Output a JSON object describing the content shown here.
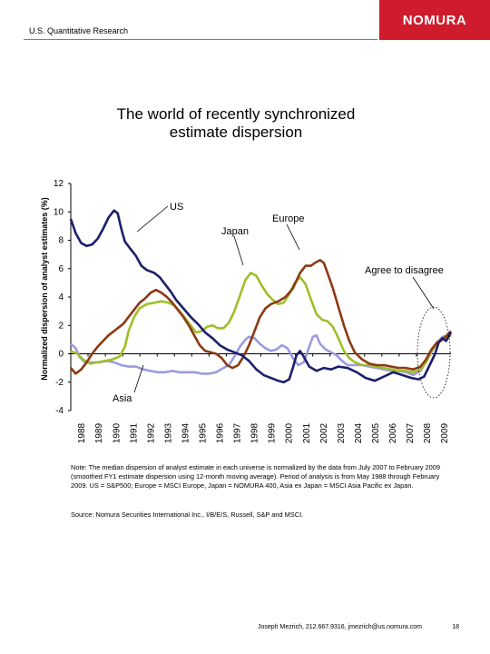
{
  "header": {
    "label": "U.S. Quantitative Research",
    "logo_text": "NOMURA"
  },
  "page_title": "The world of recently synchronized\nestimate dispersion",
  "chart_data": {
    "type": "line",
    "ylabel": "Normalized dispersion of analyst estimates (%)",
    "ylim": [
      -4,
      12
    ],
    "yticks": [
      "-4",
      "-2",
      "0",
      "2",
      "4",
      "6",
      "8",
      "10",
      "12"
    ],
    "x_tick_labels": [
      "1988",
      "1989",
      "1990",
      "1991",
      "1992",
      "1993",
      "1994",
      "1995",
      "1996",
      "1997",
      "1998",
      "1999",
      "2000",
      "2001",
      "2002",
      "2003",
      "2004",
      "2005",
      "2006",
      "2007",
      "2008",
      "2009"
    ],
    "xlim": [
      1988.33,
      2009.17
    ],
    "series": [
      {
        "name": "US",
        "color": "#1c1f6b",
        "points": [
          [
            1988.33,
            9.5
          ],
          [
            1988.6,
            8.5
          ],
          [
            1988.9,
            7.8
          ],
          [
            1989.2,
            7.6
          ],
          [
            1989.5,
            7.7
          ],
          [
            1989.8,
            8.1
          ],
          [
            1990.1,
            8.8
          ],
          [
            1990.4,
            9.6
          ],
          [
            1990.7,
            10.1
          ],
          [
            1990.9,
            9.9
          ],
          [
            1991.1,
            8.8
          ],
          [
            1991.3,
            7.9
          ],
          [
            1991.6,
            7.4
          ],
          [
            1991.9,
            6.9
          ],
          [
            1992.2,
            6.2
          ],
          [
            1992.5,
            5.9
          ],
          [
            1992.9,
            5.7
          ],
          [
            1993.2,
            5.4
          ],
          [
            1993.5,
            4.9
          ],
          [
            1993.8,
            4.4
          ],
          [
            1994.1,
            3.8
          ],
          [
            1994.5,
            3.2
          ],
          [
            1994.9,
            2.6
          ],
          [
            1995.3,
            2.1
          ],
          [
            1995.7,
            1.5
          ],
          [
            1996.1,
            1.1
          ],
          [
            1996.5,
            0.6
          ],
          [
            1996.9,
            0.3
          ],
          [
            1997.3,
            0.1
          ],
          [
            1997.7,
            -0.1
          ],
          [
            1998.1,
            -0.5
          ],
          [
            1998.5,
            -1.1
          ],
          [
            1998.9,
            -1.5
          ],
          [
            1999.3,
            -1.7
          ],
          [
            1999.7,
            -1.9
          ],
          [
            2000.0,
            -2.0
          ],
          [
            2000.3,
            -1.8
          ],
          [
            2000.5,
            -1.0
          ],
          [
            2000.7,
            -0.1
          ],
          [
            2000.9,
            0.2
          ],
          [
            2001.1,
            -0.2
          ],
          [
            2001.4,
            -0.9
          ],
          [
            2001.8,
            -1.2
          ],
          [
            2002.2,
            -1.0
          ],
          [
            2002.6,
            -1.1
          ],
          [
            2003.0,
            -0.9
          ],
          [
            2003.5,
            -1.0
          ],
          [
            2004.0,
            -1.3
          ],
          [
            2004.5,
            -1.7
          ],
          [
            2005.0,
            -1.9
          ],
          [
            2005.5,
            -1.6
          ],
          [
            2006.0,
            -1.3
          ],
          [
            2006.5,
            -1.5
          ],
          [
            2007.0,
            -1.7
          ],
          [
            2007.4,
            -1.8
          ],
          [
            2007.7,
            -1.6
          ],
          [
            2008.0,
            -0.8
          ],
          [
            2008.3,
            0.0
          ],
          [
            2008.5,
            0.8
          ],
          [
            2008.7,
            1.1
          ],
          [
            2008.9,
            0.9
          ],
          [
            2009.17,
            1.5
          ]
        ]
      },
      {
        "name": "Europe",
        "color": "#8b3a14",
        "points": [
          [
            1988.33,
            -1.0
          ],
          [
            1988.6,
            -1.4
          ],
          [
            1988.9,
            -1.1
          ],
          [
            1989.2,
            -0.6
          ],
          [
            1989.5,
            0.0
          ],
          [
            1989.8,
            0.5
          ],
          [
            1990.1,
            0.9
          ],
          [
            1990.4,
            1.3
          ],
          [
            1990.8,
            1.7
          ],
          [
            1991.2,
            2.1
          ],
          [
            1991.5,
            2.6
          ],
          [
            1991.8,
            3.1
          ],
          [
            1992.1,
            3.6
          ],
          [
            1992.4,
            3.9
          ],
          [
            1992.7,
            4.3
          ],
          [
            1993.0,
            4.5
          ],
          [
            1993.3,
            4.3
          ],
          [
            1993.6,
            4.0
          ],
          [
            1993.9,
            3.6
          ],
          [
            1994.2,
            3.1
          ],
          [
            1994.5,
            2.6
          ],
          [
            1994.8,
            2.0
          ],
          [
            1995.1,
            1.3
          ],
          [
            1995.4,
            0.6
          ],
          [
            1995.7,
            0.2
          ],
          [
            1996.0,
            0.1
          ],
          [
            1996.3,
            0.0
          ],
          [
            1996.6,
            -0.3
          ],
          [
            1996.9,
            -0.8
          ],
          [
            1997.2,
            -1.0
          ],
          [
            1997.5,
            -0.8
          ],
          [
            1997.8,
            -0.2
          ],
          [
            1998.1,
            0.6
          ],
          [
            1998.4,
            1.6
          ],
          [
            1998.7,
            2.6
          ],
          [
            1999.0,
            3.2
          ],
          [
            1999.3,
            3.5
          ],
          [
            1999.7,
            3.7
          ],
          [
            2000.1,
            4.0
          ],
          [
            2000.5,
            4.6
          ],
          [
            2000.9,
            5.7
          ],
          [
            2001.2,
            6.2
          ],
          [
            2001.5,
            6.2
          ],
          [
            2001.7,
            6.4
          ],
          [
            2002.0,
            6.6
          ],
          [
            2002.2,
            6.4
          ],
          [
            2002.4,
            5.7
          ],
          [
            2002.7,
            4.6
          ],
          [
            2003.0,
            3.3
          ],
          [
            2003.3,
            2.0
          ],
          [
            2003.6,
            0.9
          ],
          [
            2003.9,
            0.1
          ],
          [
            2004.3,
            -0.4
          ],
          [
            2004.7,
            -0.7
          ],
          [
            2005.1,
            -0.8
          ],
          [
            2005.5,
            -0.8
          ],
          [
            2005.9,
            -0.9
          ],
          [
            2006.3,
            -1.0
          ],
          [
            2006.7,
            -1.0
          ],
          [
            2007.1,
            -1.1
          ],
          [
            2007.5,
            -0.9
          ],
          [
            2007.8,
            -0.4
          ],
          [
            2008.1,
            0.3
          ],
          [
            2008.4,
            0.8
          ],
          [
            2008.7,
            1.0
          ],
          [
            2009.17,
            1.6
          ]
        ]
      },
      {
        "name": "Japan",
        "color": "#9fbf2a",
        "points": [
          [
            1988.33,
            0.2
          ],
          [
            1988.7,
            0.0
          ],
          [
            1989.0,
            -0.4
          ],
          [
            1989.4,
            -0.7
          ],
          [
            1989.8,
            -0.6
          ],
          [
            1990.2,
            -0.5
          ],
          [
            1990.6,
            -0.4
          ],
          [
            1991.0,
            -0.2
          ],
          [
            1991.3,
            0.5
          ],
          [
            1991.5,
            1.6
          ],
          [
            1991.8,
            2.6
          ],
          [
            1992.1,
            3.2
          ],
          [
            1992.5,
            3.5
          ],
          [
            1992.9,
            3.6
          ],
          [
            1993.3,
            3.7
          ],
          [
            1993.7,
            3.6
          ],
          [
            1994.0,
            3.4
          ],
          [
            1994.3,
            3.0
          ],
          [
            1994.6,
            2.5
          ],
          [
            1994.9,
            2.0
          ],
          [
            1995.2,
            1.5
          ],
          [
            1995.5,
            1.6
          ],
          [
            1995.8,
            1.9
          ],
          [
            1996.1,
            2.0
          ],
          [
            1996.4,
            1.8
          ],
          [
            1996.7,
            1.8
          ],
          [
            1997.0,
            2.2
          ],
          [
            1997.3,
            3.0
          ],
          [
            1997.6,
            4.1
          ],
          [
            1997.9,
            5.2
          ],
          [
            1998.2,
            5.7
          ],
          [
            1998.5,
            5.5
          ],
          [
            1998.8,
            4.8
          ],
          [
            1999.1,
            4.2
          ],
          [
            1999.4,
            3.8
          ],
          [
            1999.7,
            3.5
          ],
          [
            2000.0,
            3.6
          ],
          [
            2000.3,
            4.2
          ],
          [
            2000.6,
            5.0
          ],
          [
            2000.9,
            5.4
          ],
          [
            2001.2,
            4.9
          ],
          [
            2001.5,
            3.8
          ],
          [
            2001.8,
            2.8
          ],
          [
            2002.1,
            2.4
          ],
          [
            2002.4,
            2.3
          ],
          [
            2002.7,
            1.9
          ],
          [
            2003.0,
            1.1
          ],
          [
            2003.3,
            0.2
          ],
          [
            2003.6,
            -0.3
          ],
          [
            2003.9,
            -0.6
          ],
          [
            2004.3,
            -0.8
          ],
          [
            2004.7,
            -0.8
          ],
          [
            2005.1,
            -0.9
          ],
          [
            2005.5,
            -1.0
          ],
          [
            2005.9,
            -1.1
          ],
          [
            2006.3,
            -1.2
          ],
          [
            2006.7,
            -1.2
          ],
          [
            2007.1,
            -1.3
          ],
          [
            2007.5,
            -1.1
          ],
          [
            2007.8,
            -0.6
          ],
          [
            2008.1,
            0.2
          ],
          [
            2008.4,
            0.7
          ],
          [
            2008.7,
            1.0
          ],
          [
            2009.17,
            1.3
          ]
        ]
      },
      {
        "name": "Asia",
        "color": "#9c9be0",
        "points": [
          [
            1988.33,
            0.7
          ],
          [
            1988.6,
            0.4
          ],
          [
            1988.8,
            -0.2
          ],
          [
            1989.1,
            -0.6
          ],
          [
            1989.5,
            -0.6
          ],
          [
            1989.9,
            -0.6
          ],
          [
            1990.3,
            -0.5
          ],
          [
            1990.7,
            -0.6
          ],
          [
            1991.1,
            -0.8
          ],
          [
            1991.5,
            -0.9
          ],
          [
            1991.9,
            -0.9
          ],
          [
            1992.3,
            -1.1
          ],
          [
            1992.7,
            -1.2
          ],
          [
            1993.1,
            -1.3
          ],
          [
            1993.5,
            -1.3
          ],
          [
            1993.9,
            -1.2
          ],
          [
            1994.3,
            -1.3
          ],
          [
            1994.7,
            -1.3
          ],
          [
            1995.1,
            -1.3
          ],
          [
            1995.5,
            -1.4
          ],
          [
            1995.9,
            -1.4
          ],
          [
            1996.3,
            -1.3
          ],
          [
            1996.7,
            -1.0
          ],
          [
            1997.0,
            -0.8
          ],
          [
            1997.3,
            -0.2
          ],
          [
            1997.6,
            0.5
          ],
          [
            1997.9,
            1.0
          ],
          [
            1998.1,
            1.2
          ],
          [
            1998.4,
            1.1
          ],
          [
            1998.7,
            0.7
          ],
          [
            1999.0,
            0.4
          ],
          [
            1999.3,
            0.2
          ],
          [
            1999.6,
            0.3
          ],
          [
            1999.9,
            0.6
          ],
          [
            2000.2,
            0.4
          ],
          [
            2000.5,
            -0.3
          ],
          [
            2000.8,
            -0.8
          ],
          [
            2001.1,
            -0.6
          ],
          [
            2001.4,
            0.5
          ],
          [
            2001.6,
            1.2
          ],
          [
            2001.8,
            1.3
          ],
          [
            2002.0,
            0.7
          ],
          [
            2002.3,
            0.3
          ],
          [
            2002.6,
            0.1
          ],
          [
            2002.9,
            -0.1
          ],
          [
            2003.2,
            -0.5
          ],
          [
            2003.5,
            -0.8
          ],
          [
            2003.9,
            -0.8
          ],
          [
            2004.3,
            -0.8
          ],
          [
            2004.7,
            -0.9
          ],
          [
            2005.1,
            -1.0
          ],
          [
            2005.5,
            -1.1
          ],
          [
            2005.9,
            -1.2
          ],
          [
            2006.3,
            -1.2
          ],
          [
            2006.7,
            -1.3
          ],
          [
            2007.1,
            -1.5
          ],
          [
            2007.5,
            -1.2
          ],
          [
            2007.8,
            -0.6
          ],
          [
            2008.1,
            0.1
          ],
          [
            2008.4,
            0.8
          ],
          [
            2008.7,
            1.2
          ],
          [
            2009.17,
            1.3
          ]
        ]
      }
    ],
    "labels": {
      "us": "US",
      "europe": "Europe",
      "japan": "Japan",
      "asia": "Asia",
      "agree": "Agree to disagree"
    },
    "grid": false
  },
  "note": "Note: The median dispersion of analyst estimate in each universe is normalized by the data from July 2007 to February 2009 (smoothed FY1 estimate dispersion using 12-month moving average). Period of analysis is from May 1988 through February 2009. US = S&P500; Europe = MSCI Europe, Japan = NOMURA 400, Asia ex Japan = MSCI Asia Pacific ex Japan.",
  "source": "Source: Nomura Securities International Inc., I/B/E/S, Russell, S&P and MSCI.",
  "footer": {
    "contact": "Joseph Mezrich, 212.667.9316, jmezrich@us.nomura.com",
    "page_number": "18"
  }
}
